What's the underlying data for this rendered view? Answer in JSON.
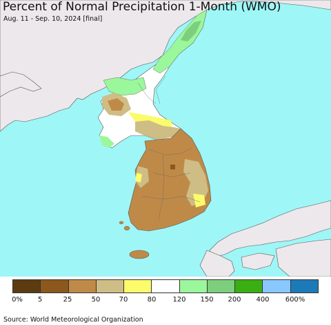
{
  "title": "Percent of Normal Precipitation 1-Month (WMO)",
  "subtitle": "Aug. 11 - Sep. 10, 2024 [final]",
  "source": "Source: World Meteorological Organization",
  "colors": {
    "ocean": "#9ff6f6",
    "land_outside": "#ece8ec",
    "border": "#555555"
  },
  "legend": {
    "colors": [
      "#5b3c11",
      "#8c581d",
      "#bf8a48",
      "#cfbd86",
      "#fbfb6c",
      "#ffffff",
      "#9bf79b",
      "#7dcf7d",
      "#3aaf14",
      "#88c8ff",
      "#1d7ab8"
    ],
    "ticks": [
      "0%",
      "5",
      "25",
      "50",
      "70",
      "80",
      "120",
      "150",
      "200",
      "400",
      "600%"
    ]
  }
}
